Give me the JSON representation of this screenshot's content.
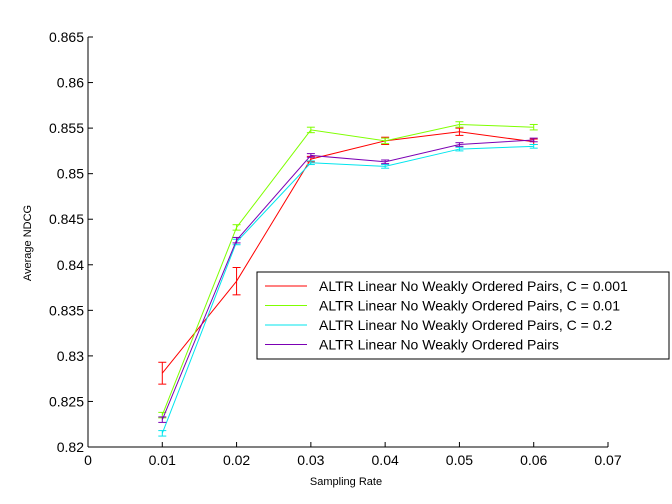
{
  "chart_data": {
    "type": "line",
    "title": "",
    "xlabel": "Sampling Rate",
    "ylabel": "Average NDCG",
    "xlim": [
      0,
      0.07
    ],
    "ylim": [
      0.82,
      0.865
    ],
    "x_ticks": [
      0,
      0.01,
      0.02,
      0.03,
      0.04,
      0.05,
      0.06,
      0.07
    ],
    "y_ticks": [
      0.82,
      0.825,
      0.83,
      0.835,
      0.84,
      0.845,
      0.85,
      0.855,
      0.86,
      0.865
    ],
    "x_tick_labels": [
      "0",
      "0.01",
      "0.02",
      "0.03",
      "0.04",
      "0.05",
      "0.06",
      "0.07"
    ],
    "y_tick_labels": [
      "0.82",
      "0.825",
      "0.83",
      "0.835",
      "0.84",
      "0.845",
      "0.85",
      "0.855",
      "0.86",
      "0.865"
    ],
    "grid": false,
    "legend_position": "center-right",
    "x": [
      0.01,
      0.02,
      0.03,
      0.04,
      0.05,
      0.06
    ],
    "series": [
      {
        "name": "ALTR Linear No Weakly Ordered Pairs, C = 0.001",
        "color": "#ff0000",
        "values": [
          0.8281,
          0.8382,
          0.8516,
          0.8536,
          0.8546,
          0.8535
        ],
        "errors": [
          0.0012,
          0.0015,
          0.0003,
          0.0004,
          0.0004,
          0.0003
        ]
      },
      {
        "name": "ALTR Linear No Weakly Ordered Pairs, C = 0.01",
        "color": "#7fff00",
        "values": [
          0.8235,
          0.8441,
          0.8548,
          0.8536,
          0.8554,
          0.8551
        ],
        "errors": [
          0.0003,
          0.0003,
          0.0003,
          0.0003,
          0.0003,
          0.0003
        ]
      },
      {
        "name": "ALTR Linear No Weakly Ordered Pairs, C = 0.2",
        "color": "#00e5ee",
        "values": [
          0.8215,
          0.8425,
          0.8512,
          0.8508,
          0.8527,
          0.853
        ],
        "errors": [
          0.0003,
          0.0003,
          0.0002,
          0.0002,
          0.0002,
          0.0002
        ]
      },
      {
        "name": "ALTR Linear No Weakly Ordered Pairs",
        "color": "#7b00b4",
        "values": [
          0.823,
          0.8427,
          0.852,
          0.8513,
          0.8532,
          0.8537
        ],
        "errors": [
          0.0003,
          0.0003,
          0.0002,
          0.0002,
          0.0002,
          0.0002
        ]
      }
    ]
  }
}
